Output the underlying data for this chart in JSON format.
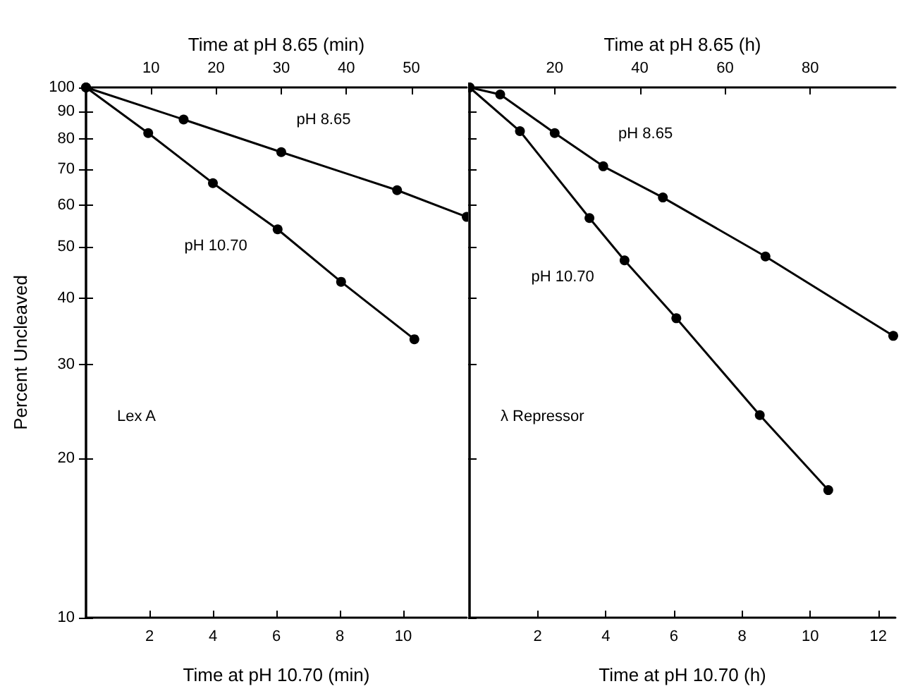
{
  "chart_data": [
    {
      "type": "line",
      "ylabel": "Percent Uncleaved",
      "xlabel": "Time at pH 10.70 (min)",
      "x2label": "Time at pH 8.65 (min)",
      "xlim": [
        0,
        12
      ],
      "xticks": [
        2,
        4,
        6,
        8,
        10
      ],
      "x2lim": [
        0,
        58.5
      ],
      "x2ticks": [
        10,
        20,
        30,
        40,
        50
      ],
      "ylim": [
        10,
        100
      ],
      "yticks": [
        10,
        20,
        30,
        40,
        50,
        60,
        70,
        80,
        90,
        100
      ],
      "log": "y",
      "grid": false,
      "marker": "circle",
      "line_style": "solid",
      "annotations": [
        "Lex A"
      ],
      "series": [
        {
          "name": "pH 8.65",
          "color": "#000000",
          "axis": "x2",
          "x": [
            0,
            15,
            30,
            47.8,
            58.5
          ],
          "values": [
            100,
            87,
            75.5,
            64,
            57
          ]
        },
        {
          "name": "pH 10.70",
          "color": "#000000",
          "x": [
            0,
            1.96,
            4,
            6.04,
            8.04,
            10.35
          ],
          "values": [
            100,
            82,
            66,
            54,
            43,
            33.5
          ]
        }
      ]
    },
    {
      "type": "line",
      "xlabel": "Time at pH 10.70 (h)",
      "x2label": "Time at pH 8.65 (h)",
      "xlim": [
        0,
        12.5
      ],
      "xticks": [
        2,
        4,
        6,
        8,
        10,
        12
      ],
      "x2lim": [
        0,
        100
      ],
      "x2ticks": [
        20,
        40,
        60,
        80
      ],
      "ylim": [
        10,
        100
      ],
      "yticks": [
        10,
        20,
        30,
        40,
        50,
        60,
        70,
        80,
        90,
        100
      ],
      "log": "y",
      "grid": false,
      "marker": "circle",
      "line_style": "solid",
      "tick_labels": "x",
      "annotations": [
        "λ Repressor"
      ],
      "series": [
        {
          "name": "pH 8.65",
          "color": "#000000",
          "axis": "x2",
          "x": [
            0,
            7.2,
            20,
            31.4,
            45.4,
            69.5,
            99.5
          ],
          "values": [
            100,
            97,
            82,
            71,
            62,
            48,
            34
          ]
        },
        {
          "name": "pH 10.70",
          "color": "#000000",
          "x": [
            0,
            1.48,
            3.52,
            4.55,
            6.07,
            8.52,
            10.53
          ],
          "values": [
            100,
            82.7,
            56.7,
            47.2,
            36.7,
            24.1,
            17.4
          ]
        }
      ]
    }
  ]
}
